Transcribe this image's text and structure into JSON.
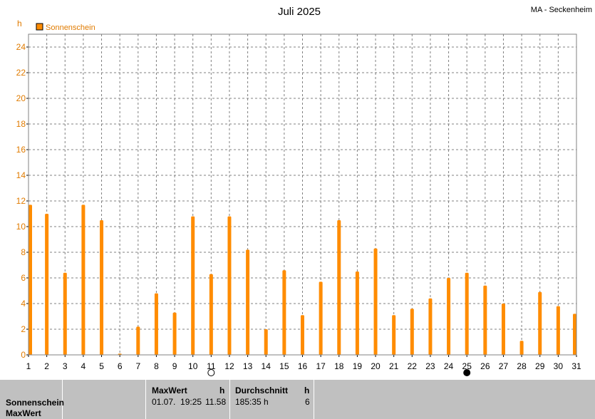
{
  "header": {
    "title": "Juli 2025",
    "station": "MA - Seckenheim"
  },
  "legend": {
    "label": "Sonnenschein",
    "color": "#ff8c00"
  },
  "colors": {
    "bar": "#ff8c00",
    "tick": "#e07b00",
    "grid": "#808080"
  },
  "chart_data": {
    "type": "bar",
    "title": "Juli 2025",
    "ylabel": "h",
    "ylim": [
      0,
      25
    ],
    "yticks": [
      0,
      2,
      4,
      6,
      8,
      10,
      12,
      14,
      16,
      18,
      20,
      22,
      24
    ],
    "grid": true,
    "legend_position": "top-left",
    "categories": [
      "1",
      "2",
      "3",
      "4",
      "5",
      "6",
      "7",
      "8",
      "9",
      "10",
      "11",
      "12",
      "13",
      "14",
      "15",
      "16",
      "17",
      "18",
      "19",
      "20",
      "21",
      "22",
      "23",
      "24",
      "25",
      "26",
      "27",
      "28",
      "29",
      "30",
      "31"
    ],
    "series": [
      {
        "name": "Sonnenschein",
        "values": [
          11.7,
          11.0,
          6.4,
          11.7,
          10.5,
          0.1,
          2.2,
          4.8,
          3.3,
          10.8,
          6.3,
          10.8,
          8.2,
          2.0,
          6.6,
          3.1,
          5.7,
          10.5,
          6.5,
          8.3,
          3.1,
          3.6,
          4.4,
          6.0,
          6.4,
          5.4,
          4.0,
          1.1,
          4.9,
          3.8,
          3.2
        ]
      }
    ],
    "moon_phases": [
      {
        "day": 11,
        "phase": "full"
      },
      {
        "day": 25,
        "phase": "new"
      }
    ]
  },
  "stats": {
    "row1": "Sonnenschein",
    "row2": "MaxWert",
    "max_header": "MaxWert",
    "max_unit": "h",
    "max_when": "01.07.  19:25",
    "max_value": "11.58",
    "avg_header": "Durchschnitt",
    "avg_unit": "h",
    "avg_total": "185:35 h",
    "avg_value": "6"
  }
}
